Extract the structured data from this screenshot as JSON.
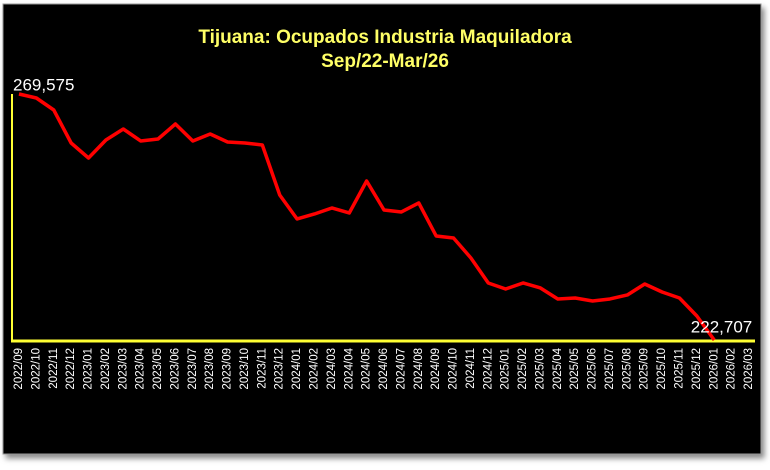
{
  "chart_data": {
    "type": "line",
    "title": "Tijuana: Ocupados Industria Maquiladora",
    "subtitle": "Sep/22-Mar/26",
    "categories": [
      "2022/09",
      "2022/10",
      "2022/11",
      "2022/12",
      "2023/01",
      "2023/02",
      "2023/03",
      "2023/04",
      "2023/05",
      "2023/06",
      "2023/07",
      "2023/08",
      "2023/09",
      "2023/10",
      "2023/11",
      "2023/12",
      "2024/01",
      "2024/02",
      "2024/03",
      "2024/04",
      "2024/05",
      "2024/06",
      "2024/07",
      "2024/08",
      "2024/09",
      "2024/10",
      "2024/11",
      "2024/12",
      "2025/01",
      "2025/02",
      "2025/03",
      "2025/04",
      "2025/05",
      "2025/06",
      "2025/07",
      "2025/08",
      "2025/09",
      "2025/10",
      "2025/11",
      "2025/12",
      "2026/01",
      "2026/02",
      "2026/03"
    ],
    "series": [
      {
        "name": "Ocupados",
        "color": "#ff0000",
        "values": [
          269575,
          268813,
          266527,
          260240,
          257383,
          260812,
          262907,
          260622,
          261003,
          263860,
          260622,
          261955,
          260431,
          260240,
          259860,
          250335,
          245763,
          246715,
          247858,
          246906,
          253002,
          247477,
          247096,
          248811,
          242524,
          242143,
          238333,
          233571,
          232428,
          233571,
          232618,
          230523,
          230713,
          230142,
          230523,
          231285,
          233380,
          231856,
          230713,
          227284,
          222707,
          null,
          null
        ],
        "value_labels": [
          "269,575",
          null,
          null,
          null,
          null,
          null,
          null,
          null,
          null,
          null,
          null,
          null,
          null,
          null,
          null,
          null,
          null,
          null,
          null,
          null,
          null,
          null,
          null,
          null,
          null,
          null,
          null,
          null,
          null,
          null,
          null,
          null,
          null,
          null,
          null,
          null,
          null,
          null,
          null,
          null,
          "222,707",
          null,
          null
        ]
      }
    ],
    "ylim": [
      222707,
      269575
    ]
  }
}
